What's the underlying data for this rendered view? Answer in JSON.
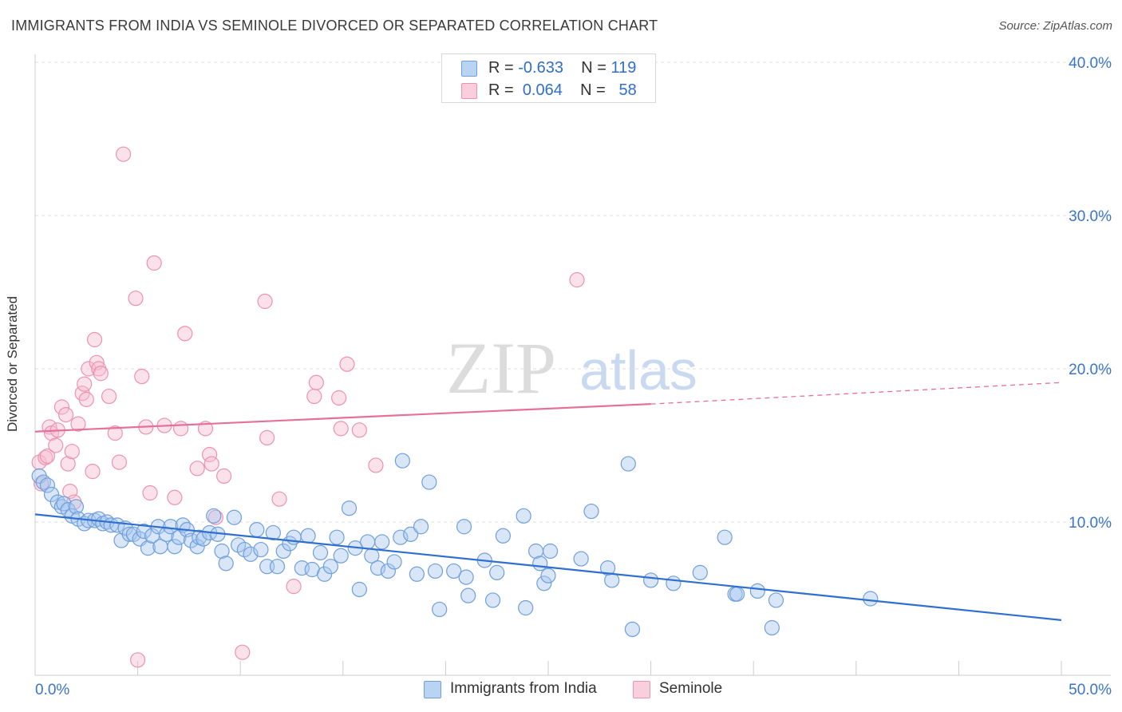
{
  "header": {
    "title": "IMMIGRANTS FROM INDIA VS SEMINOLE DIVORCED OR SEPARATED CORRELATION CHART",
    "source": "Source: ZipAtlas.com"
  },
  "legend": {
    "r_label": "R =",
    "n_label": "N =",
    "rows": [
      {
        "r": "-0.633",
        "n": "119"
      },
      {
        "r": "0.064",
        "n": "58"
      }
    ]
  },
  "watermark": {
    "zip": "ZIP",
    "atlas": "atlas"
  },
  "colors": {
    "india_fill": "#a9c8f0",
    "india_stroke": "#6f9fdc",
    "india_line": "#2f6fd0",
    "seminole_fill": "#f6bcd0",
    "seminole_stroke": "#ec92b2",
    "seminole_line": "#e5709a",
    "tick_label": "#3b74c9",
    "grid": "#dddddd"
  },
  "chart_data": {
    "type": "scatter",
    "title": "IMMIGRANTS FROM INDIA VS SEMINOLE DIVORCED OR SEPARATED CORRELATION CHART",
    "xlabel": "",
    "ylabel": "Divorced or Separated",
    "xlim": [
      0,
      50
    ],
    "ylim": [
      0,
      40
    ],
    "x_tick_labels": [
      "0.0%",
      "50.0%"
    ],
    "y_ticks": [
      10,
      20,
      30,
      40
    ],
    "y_tick_labels": [
      "10.0%",
      "20.0%",
      "30.0%",
      "40.0%"
    ],
    "grid": true,
    "legend_position": "top-center",
    "series": [
      {
        "name": "Immigrants from India",
        "color": "#a9c8f0",
        "trend": {
          "x0": 0,
          "y0": 10.5,
          "x1": 50,
          "y1": 3.6
        },
        "points": [
          [
            0.2,
            13.0
          ],
          [
            0.4,
            12.6
          ],
          [
            0.6,
            12.4
          ],
          [
            0.8,
            11.8
          ],
          [
            1.1,
            11.3
          ],
          [
            1.3,
            11.0
          ],
          [
            1.4,
            11.2
          ],
          [
            1.6,
            10.8
          ],
          [
            1.8,
            10.4
          ],
          [
            2.0,
            11.0
          ],
          [
            2.1,
            10.2
          ],
          [
            2.4,
            9.9
          ],
          [
            2.6,
            10.1
          ],
          [
            2.9,
            10.1
          ],
          [
            3.1,
            10.2
          ],
          [
            3.3,
            9.9
          ],
          [
            3.5,
            10.0
          ],
          [
            3.7,
            9.8
          ],
          [
            4.0,
            9.8
          ],
          [
            4.2,
            8.8
          ],
          [
            4.4,
            9.6
          ],
          [
            4.6,
            9.2
          ],
          [
            4.8,
            9.2
          ],
          [
            5.1,
            8.9
          ],
          [
            5.3,
            9.4
          ],
          [
            5.5,
            8.3
          ],
          [
            5.7,
            9.1
          ],
          [
            6.0,
            9.7
          ],
          [
            6.1,
            8.4
          ],
          [
            6.4,
            9.2
          ],
          [
            6.6,
            9.7
          ],
          [
            6.8,
            8.4
          ],
          [
            7.0,
            9.0
          ],
          [
            7.2,
            9.8
          ],
          [
            7.4,
            9.5
          ],
          [
            7.6,
            8.8
          ],
          [
            7.9,
            8.4
          ],
          [
            8.0,
            9.0
          ],
          [
            8.2,
            8.9
          ],
          [
            8.5,
            9.3
          ],
          [
            8.7,
            10.4
          ],
          [
            8.9,
            9.2
          ],
          [
            9.1,
            8.1
          ],
          [
            9.3,
            7.3
          ],
          [
            9.7,
            10.3
          ],
          [
            9.9,
            8.5
          ],
          [
            10.2,
            8.2
          ],
          [
            10.5,
            7.9
          ],
          [
            10.8,
            9.5
          ],
          [
            11.0,
            8.2
          ],
          [
            11.3,
            7.1
          ],
          [
            11.6,
            9.3
          ],
          [
            11.8,
            7.1
          ],
          [
            12.1,
            8.1
          ],
          [
            12.4,
            8.6
          ],
          [
            12.6,
            9.0
          ],
          [
            13.0,
            7.0
          ],
          [
            13.3,
            9.1
          ],
          [
            13.5,
            6.9
          ],
          [
            13.9,
            8.0
          ],
          [
            14.1,
            6.6
          ],
          [
            14.4,
            7.1
          ],
          [
            14.7,
            9.0
          ],
          [
            14.9,
            7.8
          ],
          [
            15.3,
            10.9
          ],
          [
            15.6,
            8.3
          ],
          [
            15.8,
            5.6
          ],
          [
            16.2,
            8.7
          ],
          [
            16.4,
            7.8
          ],
          [
            16.7,
            7.0
          ],
          [
            16.9,
            8.7
          ],
          [
            17.2,
            6.8
          ],
          [
            17.5,
            7.4
          ],
          [
            17.8,
            9.0
          ],
          [
            17.9,
            14.0
          ],
          [
            18.3,
            9.2
          ],
          [
            18.6,
            6.6
          ],
          [
            18.8,
            9.7
          ],
          [
            19.2,
            12.6
          ],
          [
            19.5,
            6.8
          ],
          [
            19.7,
            4.3
          ],
          [
            20.4,
            6.8
          ],
          [
            20.9,
            9.7
          ],
          [
            21.0,
            6.4
          ],
          [
            21.1,
            5.2
          ],
          [
            21.9,
            7.5
          ],
          [
            22.3,
            4.9
          ],
          [
            22.5,
            6.7
          ],
          [
            22.8,
            9.1
          ],
          [
            23.8,
            10.4
          ],
          [
            23.9,
            4.4
          ],
          [
            24.4,
            8.1
          ],
          [
            24.6,
            7.3
          ],
          [
            24.8,
            6.0
          ],
          [
            25.0,
            6.5
          ],
          [
            25.1,
            8.1
          ],
          [
            26.6,
            7.6
          ],
          [
            27.1,
            10.7
          ],
          [
            27.9,
            7.0
          ],
          [
            28.1,
            6.2
          ],
          [
            28.9,
            13.8
          ],
          [
            29.1,
            3.0
          ],
          [
            30.0,
            6.2
          ],
          [
            31.1,
            6.0
          ],
          [
            32.4,
            6.7
          ],
          [
            33.6,
            9.0
          ],
          [
            34.1,
            5.3
          ],
          [
            34.2,
            5.3
          ],
          [
            35.2,
            5.5
          ],
          [
            35.9,
            3.1
          ],
          [
            36.1,
            4.9
          ],
          [
            40.7,
            5.0
          ]
        ]
      },
      {
        "name": "Seminole",
        "color": "#f6bcd0",
        "trend": {
          "x0": 0,
          "y0": 15.9,
          "x1": 30,
          "y1": 17.7,
          "dashed_to_x": 50,
          "dashed_to_y": 19.1
        },
        "points": [
          [
            0.2,
            13.9
          ],
          [
            0.3,
            12.5
          ],
          [
            0.5,
            14.2
          ],
          [
            0.6,
            14.3
          ],
          [
            0.7,
            16.2
          ],
          [
            0.8,
            15.8
          ],
          [
            1.0,
            15.0
          ],
          [
            1.1,
            16.0
          ],
          [
            1.3,
            17.5
          ],
          [
            1.5,
            17.0
          ],
          [
            1.6,
            13.8
          ],
          [
            1.7,
            12.0
          ],
          [
            1.8,
            14.6
          ],
          [
            1.9,
            11.3
          ],
          [
            2.1,
            16.4
          ],
          [
            2.3,
            18.4
          ],
          [
            2.4,
            19.0
          ],
          [
            2.5,
            18.0
          ],
          [
            2.6,
            20.0
          ],
          [
            2.8,
            13.3
          ],
          [
            2.9,
            21.9
          ],
          [
            3.0,
            20.4
          ],
          [
            3.1,
            20.0
          ],
          [
            3.2,
            19.7
          ],
          [
            3.6,
            18.2
          ],
          [
            3.9,
            15.8
          ],
          [
            4.1,
            13.9
          ],
          [
            4.3,
            34.0
          ],
          [
            4.9,
            24.6
          ],
          [
            5.0,
            1.0
          ],
          [
            5.2,
            19.5
          ],
          [
            5.4,
            16.2
          ],
          [
            5.6,
            11.9
          ],
          [
            5.8,
            26.9
          ],
          [
            6.3,
            16.3
          ],
          [
            6.8,
            11.6
          ],
          [
            7.1,
            16.1
          ],
          [
            7.3,
            22.3
          ],
          [
            7.9,
            13.5
          ],
          [
            8.3,
            16.1
          ],
          [
            8.5,
            14.4
          ],
          [
            8.6,
            13.8
          ],
          [
            8.8,
            10.3
          ],
          [
            9.2,
            13.0
          ],
          [
            10.1,
            1.5
          ],
          [
            11.2,
            24.4
          ],
          [
            11.3,
            15.5
          ],
          [
            11.9,
            11.5
          ],
          [
            12.6,
            5.8
          ],
          [
            13.6,
            18.2
          ],
          [
            13.7,
            19.1
          ],
          [
            14.8,
            18.1
          ],
          [
            14.9,
            16.1
          ],
          [
            15.2,
            20.3
          ],
          [
            15.8,
            16.0
          ],
          [
            16.6,
            13.7
          ],
          [
            26.4,
            25.8
          ]
        ]
      }
    ]
  }
}
